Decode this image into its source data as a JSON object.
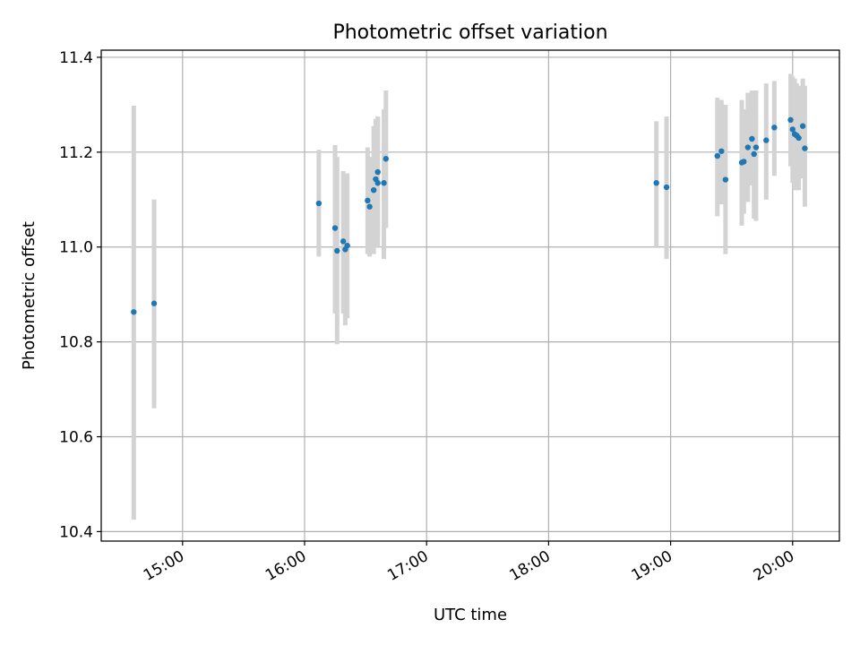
{
  "chart_data": {
    "type": "scatter",
    "title": "Photometric offset variation",
    "xlabel": "UTC time",
    "ylabel": "Photometric offset",
    "xlim": [
      "14:20",
      "20:23"
    ],
    "ylim": [
      10.38,
      11.415
    ],
    "xticks": [
      "15:00",
      "16:00",
      "17:00",
      "18:00",
      "19:00",
      "20:00"
    ],
    "yticks": [
      10.4,
      10.6,
      10.8,
      11.0,
      11.2,
      11.4
    ],
    "grid": true,
    "legend": "none",
    "colors": {
      "point": "#1f77b4",
      "errorbar": "#d3d3d3",
      "grid": "#b0b0b0"
    },
    "points": [
      {
        "x": "14:36",
        "y": 10.863,
        "ylo": 10.425,
        "yhi": 11.298
      },
      {
        "x": "14:46",
        "y": 10.881,
        "ylo": 10.66,
        "yhi": 11.1
      },
      {
        "x": "16:07",
        "y": 11.092,
        "ylo": 10.98,
        "yhi": 11.205
      },
      {
        "x": "16:15",
        "y": 11.04,
        "ylo": 10.86,
        "yhi": 11.215
      },
      {
        "x": "16:16",
        "y": 10.992,
        "ylo": 10.795,
        "yhi": 11.19
      },
      {
        "x": "16:19",
        "y": 11.012,
        "ylo": 10.86,
        "yhi": 11.16
      },
      {
        "x": "16:20",
        "y": 10.995,
        "ylo": 10.835,
        "yhi": 11.155
      },
      {
        "x": "16:21",
        "y": 11.003,
        "ylo": 10.85,
        "yhi": 11.155
      },
      {
        "x": "16:31",
        "y": 11.098,
        "ylo": 10.985,
        "yhi": 11.21
      },
      {
        "x": "16:32",
        "y": 11.085,
        "ylo": 10.98,
        "yhi": 11.19
      },
      {
        "x": "16:34",
        "y": 11.12,
        "ylo": 10.985,
        "yhi": 11.255
      },
      {
        "x": "16:35",
        "y": 11.143,
        "ylo": 11.0,
        "yhi": 11.27
      },
      {
        "x": "16:36",
        "y": 11.158,
        "ylo": 11.02,
        "yhi": 11.275
      },
      {
        "x": "16:36",
        "y": 11.135,
        "ylo": 11.0,
        "yhi": 11.275
      },
      {
        "x": "16:39",
        "y": 11.135,
        "ylo": 10.975,
        "yhi": 11.29
      },
      {
        "x": "16:40",
        "y": 11.186,
        "ylo": 11.04,
        "yhi": 11.33
      },
      {
        "x": "18:53",
        "y": 11.135,
        "ylo": 11.0,
        "yhi": 11.265
      },
      {
        "x": "18:58",
        "y": 11.126,
        "ylo": 10.975,
        "yhi": 11.275
      },
      {
        "x": "19:23",
        "y": 11.192,
        "ylo": 11.065,
        "yhi": 11.315
      },
      {
        "x": "19:25",
        "y": 11.202,
        "ylo": 11.09,
        "yhi": 11.31
      },
      {
        "x": "19:27",
        "y": 11.142,
        "ylo": 10.985,
        "yhi": 11.3
      },
      {
        "x": "19:35",
        "y": 11.178,
        "ylo": 11.045,
        "yhi": 11.31
      },
      {
        "x": "19:36",
        "y": 11.18,
        "ylo": 11.07,
        "yhi": 11.29
      },
      {
        "x": "19:38",
        "y": 11.21,
        "ylo": 11.095,
        "yhi": 11.325
      },
      {
        "x": "19:40",
        "y": 11.228,
        "ylo": 11.13,
        "yhi": 11.33
      },
      {
        "x": "19:41",
        "y": 11.196,
        "ylo": 11.06,
        "yhi": 11.33
      },
      {
        "x": "19:42",
        "y": 11.21,
        "ylo": 11.055,
        "yhi": 11.33
      },
      {
        "x": "19:47",
        "y": 11.225,
        "ylo": 11.1,
        "yhi": 11.345
      },
      {
        "x": "19:51",
        "y": 11.252,
        "ylo": 11.15,
        "yhi": 11.35
      },
      {
        "x": "19:59",
        "y": 11.268,
        "ylo": 11.17,
        "yhi": 11.365
      },
      {
        "x": "20:00",
        "y": 11.248,
        "ylo": 11.135,
        "yhi": 11.36
      },
      {
        "x": "20:01",
        "y": 11.238,
        "ylo": 11.12,
        "yhi": 11.355
      },
      {
        "x": "20:02",
        "y": 11.235,
        "ylo": 11.12,
        "yhi": 11.345
      },
      {
        "x": "20:03",
        "y": 11.23,
        "ylo": 11.12,
        "yhi": 11.34
      },
      {
        "x": "20:05",
        "y": 11.255,
        "ylo": 11.145,
        "yhi": 11.355
      },
      {
        "x": "20:06",
        "y": 11.208,
        "ylo": 11.085,
        "yhi": 11.34
      }
    ]
  }
}
